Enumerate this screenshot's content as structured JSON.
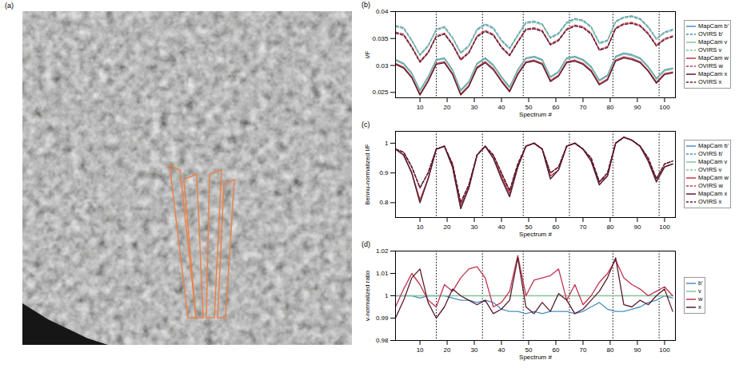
{
  "image_panel": {
    "label": "(a)"
  },
  "chart_data": [
    {
      "type": "line",
      "panel_label": "(b)",
      "ylabel": "I/F",
      "xlabel": "Spectrum #",
      "x": [
        1,
        4,
        7,
        10,
        13,
        16,
        19,
        22,
        25,
        28,
        31,
        34,
        37,
        40,
        43,
        46,
        49,
        52,
        55,
        58,
        61,
        64,
        67,
        70,
        73,
        76,
        79,
        82,
        85,
        88,
        91,
        94,
        97,
        100,
        103
      ],
      "xlim": [
        1,
        104
      ],
      "xticks": [
        10,
        20,
        30,
        40,
        50,
        60,
        70,
        80,
        90,
        100
      ],
      "ylim": [
        0.024,
        0.04
      ],
      "yticks": [
        0.025,
        0.03,
        0.035,
        0.04
      ],
      "vlines": [
        16,
        33,
        48,
        65,
        81,
        98
      ],
      "legend": "right",
      "series": [
        {
          "name": "MapCam b'",
          "color": "#4a8fc4",
          "line_style": "solid",
          "values": [
            0.0311,
            0.0304,
            0.0286,
            0.0254,
            0.0279,
            0.0311,
            0.0314,
            0.0292,
            0.0254,
            0.027,
            0.0304,
            0.0314,
            0.0301,
            0.0279,
            0.026,
            0.0292,
            0.0314,
            0.0317,
            0.0311,
            0.0279,
            0.0289,
            0.0314,
            0.0317,
            0.0311,
            0.0298,
            0.0273,
            0.0282,
            0.0317,
            0.0323,
            0.032,
            0.0314,
            0.0298,
            0.0276,
            0.0292,
            0.0295
          ]
        },
        {
          "name": "OVIRS b'",
          "color": "#4a8fc4",
          "line_style": "dashed",
          "values": [
            0.0374,
            0.037,
            0.0347,
            0.032,
            0.0337,
            0.0367,
            0.0372,
            0.0352,
            0.0324,
            0.0337,
            0.0367,
            0.0377,
            0.037,
            0.0347,
            0.0332,
            0.0357,
            0.038,
            0.0382,
            0.0377,
            0.0352,
            0.036,
            0.038,
            0.0387,
            0.0384,
            0.0372,
            0.0342,
            0.0347,
            0.0382,
            0.039,
            0.0392,
            0.0387,
            0.0372,
            0.035,
            0.0362,
            0.0367
          ]
        },
        {
          "name": "MapCam v",
          "color": "#86c29a",
          "line_style": "solid",
          "values": [
            0.0309,
            0.0302,
            0.0284,
            0.0252,
            0.0277,
            0.0309,
            0.0312,
            0.029,
            0.0252,
            0.0268,
            0.0302,
            0.0312,
            0.0299,
            0.0277,
            0.0258,
            0.029,
            0.0312,
            0.0315,
            0.0309,
            0.0277,
            0.0287,
            0.0312,
            0.0315,
            0.0309,
            0.0296,
            0.0271,
            0.028,
            0.0315,
            0.0321,
            0.0318,
            0.0312,
            0.0296,
            0.0274,
            0.029,
            0.0293
          ]
        },
        {
          "name": "OVIRS v",
          "color": "#86c29a",
          "line_style": "dashed",
          "values": [
            0.0372,
            0.0368,
            0.0345,
            0.0318,
            0.0335,
            0.0365,
            0.037,
            0.035,
            0.0322,
            0.0335,
            0.0365,
            0.0375,
            0.0368,
            0.0345,
            0.033,
            0.0355,
            0.0378,
            0.038,
            0.0375,
            0.035,
            0.0358,
            0.0378,
            0.0385,
            0.0382,
            0.037,
            0.034,
            0.0345,
            0.038,
            0.0388,
            0.039,
            0.0385,
            0.037,
            0.0348,
            0.036,
            0.0365
          ]
        },
        {
          "name": "MapCam w",
          "color": "#c0344d",
          "line_style": "solid",
          "values": [
            0.0304,
            0.0297,
            0.0279,
            0.0247,
            0.0272,
            0.0304,
            0.0307,
            0.0285,
            0.0247,
            0.0263,
            0.0297,
            0.0307,
            0.0294,
            0.0272,
            0.0253,
            0.0285,
            0.0307,
            0.031,
            0.0304,
            0.0272,
            0.0282,
            0.0307,
            0.031,
            0.0304,
            0.0291,
            0.0266,
            0.0275,
            0.031,
            0.0316,
            0.0313,
            0.0307,
            0.0291,
            0.0269,
            0.0285,
            0.0288
          ]
        },
        {
          "name": "OVIRS w",
          "color": "#c0344d",
          "line_style": "dashed",
          "values": [
            0.0362,
            0.0358,
            0.0335,
            0.0308,
            0.0325,
            0.0355,
            0.036,
            0.034,
            0.0312,
            0.0325,
            0.0355,
            0.0365,
            0.0358,
            0.0335,
            0.032,
            0.0345,
            0.0368,
            0.037,
            0.0365,
            0.034,
            0.0348,
            0.0368,
            0.0375,
            0.0372,
            0.036,
            0.033,
            0.0335,
            0.037,
            0.0378,
            0.038,
            0.0375,
            0.036,
            0.0338,
            0.035,
            0.0355
          ]
        },
        {
          "name": "MapCam x",
          "color": "#5a1a2c",
          "line_style": "solid",
          "values": [
            0.0302,
            0.0295,
            0.0277,
            0.0245,
            0.027,
            0.0302,
            0.0305,
            0.0283,
            0.0245,
            0.0261,
            0.0295,
            0.0305,
            0.0292,
            0.027,
            0.0251,
            0.0283,
            0.0305,
            0.0308,
            0.0302,
            0.027,
            0.028,
            0.0305,
            0.0308,
            0.0302,
            0.0289,
            0.0264,
            0.0273,
            0.0308,
            0.0314,
            0.0311,
            0.0305,
            0.0289,
            0.0267,
            0.0283,
            0.0286
          ]
        },
        {
          "name": "OVIRS x",
          "color": "#5a1a2c",
          "line_style": "dashed",
          "values": [
            0.036,
            0.0356,
            0.0333,
            0.0306,
            0.0323,
            0.0353,
            0.0358,
            0.0338,
            0.031,
            0.0323,
            0.0353,
            0.0363,
            0.0356,
            0.0333,
            0.0318,
            0.0343,
            0.0366,
            0.0368,
            0.0363,
            0.0338,
            0.0346,
            0.0366,
            0.0373,
            0.037,
            0.0358,
            0.0328,
            0.0333,
            0.0368,
            0.0376,
            0.0378,
            0.0373,
            0.0358,
            0.0336,
            0.0348,
            0.0353
          ]
        }
      ]
    },
    {
      "type": "line",
      "panel_label": "(c)",
      "ylabel": "Bennu-normalized I/F",
      "xlabel": "Spectrum #",
      "x": [
        1,
        4,
        7,
        10,
        13,
        16,
        19,
        22,
        25,
        28,
        31,
        34,
        37,
        40,
        43,
        46,
        49,
        52,
        55,
        58,
        61,
        64,
        67,
        70,
        73,
        76,
        79,
        82,
        85,
        88,
        91,
        94,
        97,
        100,
        103
      ],
      "xlim": [
        1,
        104
      ],
      "xticks": [
        10,
        20,
        30,
        40,
        50,
        60,
        70,
        80,
        90,
        100
      ],
      "ylim": [
        0.75,
        1.04
      ],
      "yticks": [
        0.8,
        0.9,
        1
      ],
      "vlines": [
        16,
        33,
        48,
        65,
        81,
        98
      ],
      "legend": "right",
      "series": [
        {
          "name": "MapCam b'",
          "color": "#4a8fc4",
          "line_style": "solid",
          "values": [
            0.98,
            0.96,
            0.9,
            0.8,
            0.88,
            0.98,
            0.99,
            0.92,
            0.78,
            0.85,
            0.96,
            0.99,
            0.95,
            0.88,
            0.82,
            0.92,
            0.99,
            1.0,
            0.98,
            0.88,
            0.91,
            0.99,
            1.0,
            0.98,
            0.94,
            0.86,
            0.89,
            1.0,
            1.02,
            1.01,
            0.99,
            0.94,
            0.87,
            0.92,
            0.93
          ]
        },
        {
          "name": "OVIRS b'",
          "color": "#4a8fc4",
          "line_style": "dashed",
          "values": [
            0.98,
            0.97,
            0.92,
            0.85,
            0.9,
            0.98,
            0.99,
            0.93,
            0.8,
            0.86,
            0.96,
            0.99,
            0.96,
            0.9,
            0.84,
            0.93,
            0.99,
            1.0,
            0.98,
            0.9,
            0.92,
            0.99,
            1.0,
            0.98,
            0.95,
            0.87,
            0.9,
            1.0,
            1.02,
            1.01,
            0.99,
            0.95,
            0.88,
            0.93,
            0.94
          ]
        },
        {
          "name": "MapCam v",
          "color": "#86c29a",
          "line_style": "solid",
          "values": [
            0.98,
            0.96,
            0.9,
            0.8,
            0.88,
            0.98,
            0.99,
            0.92,
            0.78,
            0.85,
            0.96,
            0.99,
            0.95,
            0.88,
            0.82,
            0.92,
            0.99,
            1.0,
            0.98,
            0.88,
            0.91,
            0.99,
            1.0,
            0.98,
            0.94,
            0.86,
            0.89,
            1.0,
            1.02,
            1.01,
            0.99,
            0.94,
            0.87,
            0.92,
            0.93
          ]
        },
        {
          "name": "OVIRS v",
          "color": "#86c29a",
          "line_style": "dashed",
          "values": [
            0.98,
            0.97,
            0.92,
            0.85,
            0.9,
            0.98,
            0.99,
            0.93,
            0.8,
            0.86,
            0.96,
            0.99,
            0.96,
            0.9,
            0.84,
            0.93,
            0.99,
            1.0,
            0.98,
            0.9,
            0.92,
            0.99,
            1.0,
            0.98,
            0.95,
            0.87,
            0.9,
            1.0,
            1.02,
            1.01,
            0.99,
            0.95,
            0.88,
            0.93,
            0.94
          ]
        },
        {
          "name": "MapCam w",
          "color": "#c0344d",
          "line_style": "solid",
          "values": [
            0.98,
            0.96,
            0.9,
            0.81,
            0.88,
            0.98,
            0.99,
            0.92,
            0.79,
            0.85,
            0.96,
            0.99,
            0.95,
            0.89,
            0.83,
            0.92,
            0.99,
            1.0,
            0.98,
            0.89,
            0.91,
            0.99,
            1.0,
            0.98,
            0.94,
            0.87,
            0.89,
            1.0,
            1.02,
            1.01,
            0.99,
            0.94,
            0.88,
            0.92,
            0.93
          ]
        },
        {
          "name": "OVIRS w",
          "color": "#c0344d",
          "line_style": "dashed",
          "values": [
            0.98,
            0.97,
            0.92,
            0.85,
            0.9,
            0.98,
            0.99,
            0.93,
            0.8,
            0.86,
            0.96,
            0.99,
            0.96,
            0.9,
            0.84,
            0.93,
            0.99,
            1.0,
            0.98,
            0.9,
            0.92,
            0.99,
            1.0,
            0.98,
            0.95,
            0.87,
            0.9,
            1.0,
            1.02,
            1.01,
            0.99,
            0.95,
            0.88,
            0.93,
            0.94
          ]
        },
        {
          "name": "MapCam x",
          "color": "#5a1a2c",
          "line_style": "solid",
          "values": [
            0.98,
            0.96,
            0.9,
            0.8,
            0.88,
            0.98,
            0.99,
            0.92,
            0.78,
            0.85,
            0.96,
            0.99,
            0.95,
            0.88,
            0.82,
            0.92,
            0.99,
            1.0,
            0.98,
            0.88,
            0.91,
            0.99,
            1.0,
            0.98,
            0.94,
            0.86,
            0.89,
            1.0,
            1.02,
            1.01,
            0.99,
            0.94,
            0.87,
            0.92,
            0.93
          ]
        },
        {
          "name": "OVIRS x",
          "color": "#5a1a2c",
          "line_style": "dashed",
          "values": [
            0.98,
            0.97,
            0.92,
            0.85,
            0.9,
            0.98,
            0.99,
            0.93,
            0.8,
            0.86,
            0.96,
            0.99,
            0.96,
            0.9,
            0.84,
            0.93,
            0.99,
            1.0,
            0.98,
            0.9,
            0.92,
            0.99,
            1.0,
            0.98,
            0.95,
            0.87,
            0.9,
            1.0,
            1.02,
            1.01,
            0.99,
            0.95,
            0.88,
            0.93,
            0.94
          ]
        }
      ]
    },
    {
      "type": "line",
      "panel_label": "(d)",
      "ylabel": "v-normalized ratio",
      "xlabel": "Spectrum #",
      "x": [
        1,
        4,
        7,
        10,
        13,
        16,
        19,
        22,
        25,
        28,
        31,
        34,
        37,
        40,
        43,
        46,
        49,
        52,
        55,
        58,
        61,
        64,
        67,
        70,
        73,
        76,
        79,
        82,
        85,
        88,
        91,
        94,
        97,
        100,
        103
      ],
      "xlim": [
        1,
        104
      ],
      "xticks": [
        10,
        20,
        30,
        40,
        50,
        60,
        70,
        80,
        90,
        100
      ],
      "ylim": [
        0.98,
        1.02
      ],
      "yticks": [
        0.98,
        0.99,
        1,
        1.01,
        1.02
      ],
      "vlines": [
        16,
        33,
        48,
        65,
        81,
        98
      ],
      "legend": "right",
      "series": [
        {
          "name": "b'",
          "color": "#4a8fc4",
          "line_style": "solid",
          "values": [
            1.0,
            1.0,
            1.0,
            0.999,
            1.0,
            1.0,
            1.0,
            0.999,
            0.998,
            0.998,
            0.997,
            0.998,
            0.997,
            0.994,
            0.993,
            0.993,
            0.992,
            0.993,
            0.992,
            0.993,
            0.993,
            0.993,
            0.992,
            0.993,
            0.995,
            0.997,
            0.994,
            0.993,
            0.993,
            0.994,
            0.995,
            0.997,
            0.998,
            1.0,
            0.999
          ]
        },
        {
          "name": "v",
          "color": "#86c29a",
          "line_style": "solid",
          "values": [
            1,
            1,
            1,
            1,
            1,
            1,
            1,
            1,
            1,
            1,
            1,
            1,
            1,
            1,
            1,
            1,
            1,
            1,
            1,
            1,
            1,
            1,
            1,
            1,
            1,
            1,
            1,
            1,
            1,
            1,
            1,
            1,
            1,
            1,
            1
          ]
        },
        {
          "name": "w",
          "color": "#c0344d",
          "line_style": "solid",
          "values": [
            0.995,
            1.003,
            1.01,
            1.005,
            0.998,
            0.995,
            1.005,
            1.002,
            1.008,
            1.012,
            1.013,
            1.008,
            0.995,
            0.997,
            1.002,
            1.018,
            1.0,
            1.007,
            1.008,
            1.009,
            1.012,
            0.998,
            1.005,
            0.996,
            1.0,
            1.006,
            1.01,
            1.016,
            1.008,
            1.005,
            1.003,
            1.0,
            1.002,
            1.004,
            1.0
          ]
        },
        {
          "name": "x",
          "color": "#5a1a2c",
          "line_style": "solid",
          "values": [
            0.99,
            0.998,
            1.008,
            1.012,
            0.997,
            0.99,
            0.995,
            1.003,
            1.0,
            0.998,
            0.996,
            0.998,
            0.992,
            0.994,
            0.998,
            1.017,
            0.995,
            0.992,
            0.997,
            0.993,
            1.001,
            0.998,
            0.992,
            0.994,
            0.998,
            1.002,
            1.008,
            1.017,
            0.996,
            0.995,
            0.998,
            0.996,
            1.0,
            1.003,
            0.993
          ]
        }
      ]
    }
  ]
}
